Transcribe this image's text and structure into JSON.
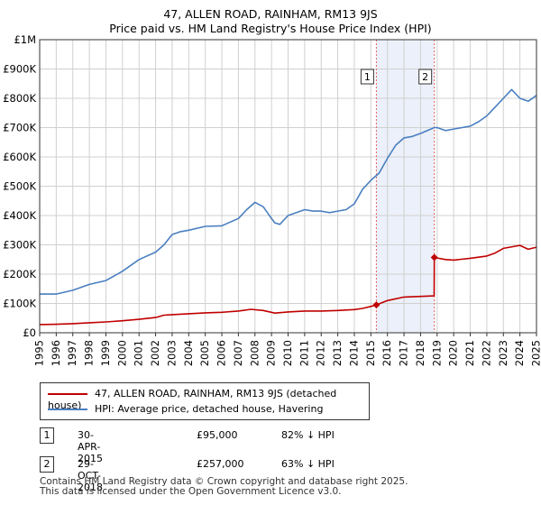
{
  "chart_data": {
    "type": "line",
    "title": "47, ALLEN ROAD, RAINHAM, RM13 9JS",
    "subtitle": "Price paid vs. HM Land Registry's House Price Index (HPI)",
    "xlim": [
      1995,
      2025
    ],
    "ylim": [
      0,
      1000000
    ],
    "y_ticks": [
      0,
      100000,
      200000,
      300000,
      400000,
      500000,
      600000,
      700000,
      800000,
      900000,
      1000000
    ],
    "y_tick_labels": [
      "£0",
      "£100K",
      "£200K",
      "£300K",
      "£400K",
      "£500K",
      "£600K",
      "£700K",
      "£800K",
      "£900K",
      "£1M"
    ],
    "x_ticks": [
      1995,
      1996,
      1997,
      1998,
      1999,
      2000,
      2001,
      2002,
      2003,
      2004,
      2005,
      2006,
      2007,
      2008,
      2009,
      2010,
      2011,
      2012,
      2013,
      2014,
      2015,
      2016,
      2017,
      2018,
      2019,
      2020,
      2021,
      2022,
      2023,
      2024,
      2025
    ],
    "x_tick_labels": [
      "1995",
      "1996",
      "1997",
      "1998",
      "1999",
      "2000",
      "2001",
      "2002",
      "2003",
      "2004",
      "2005",
      "2006",
      "2007",
      "2008",
      "2009",
      "2010",
      "2011",
      "2012",
      "2013",
      "2014",
      "2015",
      "2016",
      "2017",
      "2018",
      "2019",
      "2020",
      "2021",
      "2022",
      "2023",
      "2024",
      "2025"
    ],
    "grid": true,
    "shaded_region": {
      "x0": 2015.33,
      "x1": 2018.83
    },
    "series": [
      {
        "name": "47, ALLEN ROAD, RAINHAM, RM13 9JS (detached house)",
        "color": "#c00000",
        "x": [
          1995.0,
          1996.0,
          1997.0,
          1998.0,
          1999.0,
          2000.0,
          2001.0,
          2002.0,
          2002.5,
          2003.0,
          2004.0,
          2005.0,
          2006.0,
          2007.0,
          2007.75,
          2008.5,
          2009.2,
          2010.0,
          2011.0,
          2012.0,
          2013.0,
          2014.0,
          2014.5,
          2015.0,
          2015.33,
          2016.0,
          2017.0,
          2018.0,
          2018.82,
          2018.83,
          2019.5,
          2020.0,
          2021.0,
          2022.0,
          2022.5,
          2023.0,
          2024.0,
          2024.5,
          2025.0
        ],
        "y": [
          28000,
          29000,
          31000,
          34000,
          37000,
          41000,
          46000,
          52000,
          60000,
          62000,
          65000,
          68000,
          70000,
          74000,
          80000,
          76000,
          67000,
          71000,
          74000,
          74000,
          76000,
          79000,
          83000,
          90000,
          95000,
          110000,
          122000,
          124000,
          126000,
          257000,
          250000,
          248000,
          254000,
          262000,
          272000,
          288000,
          298000,
          285000,
          292000
        ]
      },
      {
        "name": "HPI: Average price, detached house, Havering",
        "color": "#4a7fc1",
        "x": [
          1995.0,
          1996.0,
          1997.0,
          1998.0,
          1999.0,
          2000.0,
          2000.5,
          2001.0,
          2002.0,
          2002.5,
          2003.0,
          2003.5,
          2004.0,
          2005.0,
          2006.0,
          2007.0,
          2007.5,
          2008.0,
          2008.5,
          2009.0,
          2009.2,
          2009.5,
          2010.0,
          2010.5,
          2011.0,
          2011.5,
          2012.0,
          2012.5,
          2013.0,
          2013.5,
          2014.0,
          2014.5,
          2015.0,
          2015.5,
          2016.0,
          2016.5,
          2017.0,
          2017.5,
          2018.0,
          2018.83,
          2019.0,
          2019.5,
          2020.0,
          2020.5,
          2021.0,
          2021.5,
          2022.0,
          2022.5,
          2023.0,
          2023.5,
          2024.0,
          2024.5,
          2025.0
        ],
        "y": [
          132000,
          132000,
          145000,
          165000,
          178000,
          210000,
          230000,
          250000,
          275000,
          300000,
          335000,
          345000,
          350000,
          363000,
          365000,
          390000,
          420000,
          445000,
          430000,
          390000,
          375000,
          370000,
          400000,
          410000,
          420000,
          415000,
          415000,
          410000,
          415000,
          420000,
          440000,
          490000,
          520000,
          545000,
          595000,
          640000,
          665000,
          670000,
          680000,
          700000,
          700000,
          690000,
          695000,
          700000,
          705000,
          720000,
          740000,
          770000,
          800000,
          830000,
          800000,
          790000,
          810000
        ]
      }
    ],
    "markers": [
      {
        "label": "1",
        "x": 2015.33,
        "y": 95000
      },
      {
        "label": "2",
        "x": 2018.83,
        "y": 257000
      }
    ]
  },
  "legend": {
    "property_label": "47, ALLEN ROAD, RAINHAM, RM13 9JS (detached house)",
    "hpi_label": "HPI: Average price, detached house, Havering",
    "property_color": "#c00000",
    "hpi_color": "#4a7fc1"
  },
  "annotations": [
    {
      "num": "1",
      "date": "30-APR-2015",
      "price": "£95,000",
      "hpi": "82% ↓ HPI"
    },
    {
      "num": "2",
      "date": "29-OCT-2018",
      "price": "£257,000",
      "hpi": "63% ↓ HPI"
    }
  ],
  "footer": {
    "line1": "Contains HM Land Registry data © Crown copyright and database right 2025.",
    "line2": "This data is licensed under the Open Government Licence v3.0."
  }
}
